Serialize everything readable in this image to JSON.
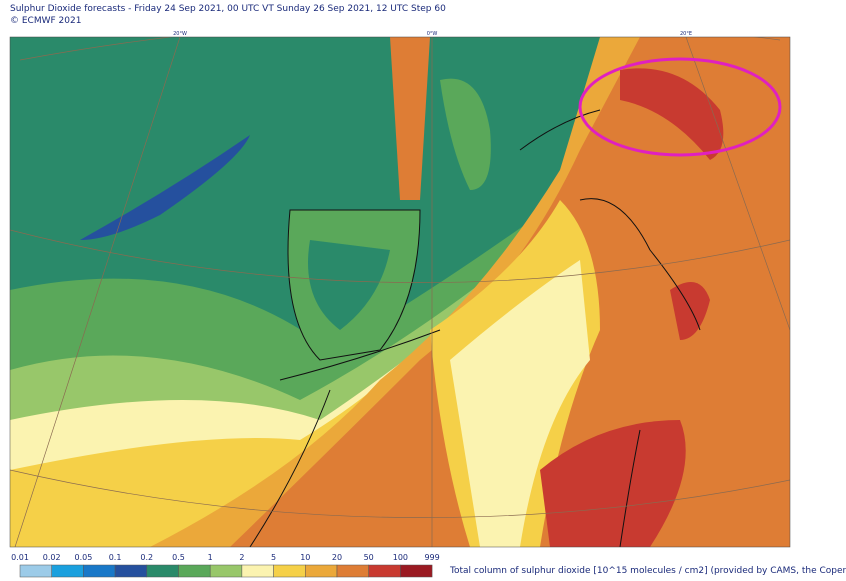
{
  "header": {
    "title": "Sulphur Dioxide forecasts - Friday 24 Sep 2021, 00 UTC VT Sunday 26 Sep 2021, 12 UTC Step 60",
    "copyright": "© ECMWF 2021"
  },
  "map": {
    "meridian_labels": [
      "20°W",
      "0°W",
      "20°E"
    ]
  },
  "legend": {
    "labels": [
      "0.01",
      "0.02",
      "0.05",
      "0.1",
      "0.2",
      "0.5",
      "1",
      "2",
      "5",
      "10",
      "20",
      "50",
      "100",
      "999"
    ],
    "colors": [
      "#9ccbe8",
      "#1aa0de",
      "#1978c8",
      "#25509e",
      "#2a8a6a",
      "#5aa85a",
      "#98c76a",
      "#fbf3b0",
      "#f5d048",
      "#eba83a",
      "#de7d35",
      "#c83a30",
      "#9a1a22"
    ],
    "caption": "Total column of sulphur dioxide [10^15 molecules / cm2] (provided by CAMS, the Coper"
  }
}
